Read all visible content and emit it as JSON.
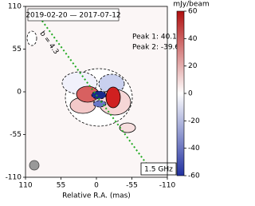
{
  "chart_data": {
    "type": "image",
    "x_label": "Relative R.A. (mas)",
    "xlim": [
      110,
      -110
    ],
    "xticks": [
      110,
      55,
      0,
      -55,
      -110
    ],
    "ylim": [
      -110,
      110
    ],
    "yticks": [
      110,
      55,
      0,
      -55,
      -110
    ],
    "epoch_label": "2019-02-20 — 2017-07-12",
    "peak_labels": [
      "Peak 1: 40.1",
      "Peak 2: -39.6"
    ],
    "line_label": "b = 4.3",
    "line_color": "#22aa22",
    "frequency_label": "1.5 GHz",
    "colorbar": {
      "label": "mJy/beam",
      "lim": [
        -60,
        60
      ],
      "ticks": [
        60,
        40,
        20,
        0,
        -20,
        -40,
        -60
      ],
      "colors": [
        "#2030a0",
        "#ffffff",
        "#b01010"
      ]
    }
  }
}
